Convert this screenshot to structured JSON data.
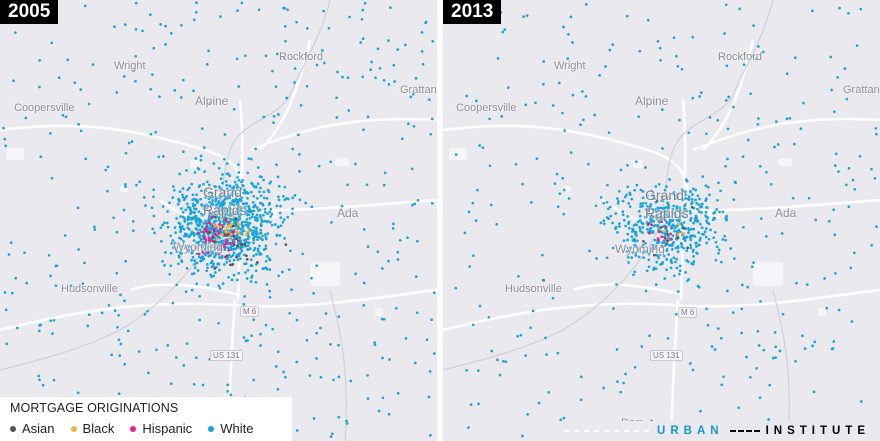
{
  "panels": [
    {
      "year": "2005",
      "places": {
        "wright": "Wright",
        "rockford": "Rockford",
        "grattan": "Grattan",
        "alpine": "Alpine",
        "coopersville": "Coopersville",
        "grand": "Grand",
        "rapids": "Rapids",
        "ada": "Ada",
        "wyoming": "Wyoming",
        "hudsonville": "Hudsonville",
        "m6": "M 6",
        "us131": "US 131"
      }
    },
    {
      "year": "2013",
      "places": {
        "wright": "Wright",
        "rockford": "Rockford",
        "grattan": "Grattan",
        "alpine": "Alpine",
        "coopersville": "Coopersville",
        "grand": "Grand",
        "rapids": "Rapids",
        "ada": "Ada",
        "wyoming": "Wyoming",
        "hudsonville": "Hudsonville",
        "m6": "M 6",
        "us131": "US 131",
        "dorr": "Dorr"
      }
    }
  ],
  "legend": {
    "title": "MORTGAGE ORIGINATIONS",
    "items": [
      {
        "label": "Asian",
        "color": "#555555"
      },
      {
        "label": "Black",
        "color": "#f5b041"
      },
      {
        "label": "Hispanic",
        "color": "#e6208a"
      },
      {
        "label": "White",
        "color": "#1aa3d9"
      }
    ]
  },
  "brand": {
    "urban": "URBAN",
    "institute": "INSTITUTE"
  }
}
